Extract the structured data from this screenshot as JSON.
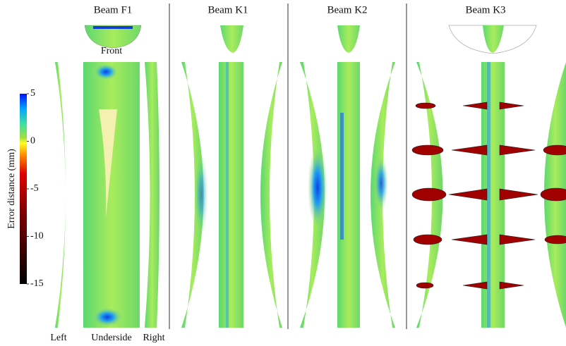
{
  "colorbar": {
    "label": "Error distance (mm)",
    "range": [
      -15,
      5
    ],
    "ticks": [
      5,
      0,
      -5,
      -10,
      -15
    ]
  },
  "panels": [
    {
      "title": "Beam F1"
    },
    {
      "title": "Beam K1"
    },
    {
      "title": "Beam K2"
    },
    {
      "title": "Beam K3"
    }
  ],
  "view_labels": {
    "front": "Front",
    "left": "Left",
    "underside": "Underside",
    "right": "Right"
  }
}
